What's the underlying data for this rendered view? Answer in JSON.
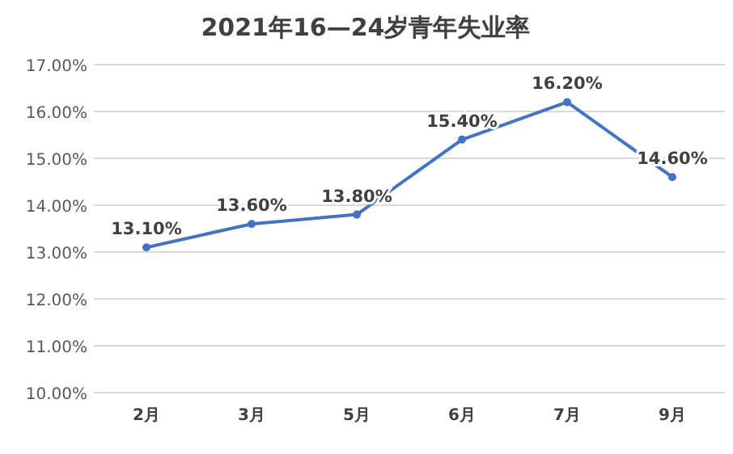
{
  "chart_data": {
    "type": "line",
    "title": "2021年16—24岁青年失业率",
    "categories": [
      "2月",
      "3月",
      "5月",
      "6月",
      "7月",
      "9月"
    ],
    "series": [
      {
        "color": "#4472c4",
        "values": [
          13.1,
          13.6,
          13.8,
          15.4,
          16.2,
          14.6
        ],
        "value_labels": [
          "13.10%",
          "13.60%",
          "13.80%",
          "15.40%",
          "16.20%",
          "14.60%"
        ]
      }
    ],
    "ylim": [
      10,
      17
    ],
    "yticks": [
      {
        "value": 10,
        "label": "10.00%"
      },
      {
        "value": 11,
        "label": "11.00%"
      },
      {
        "value": 12,
        "label": "12.00%"
      },
      {
        "value": 13,
        "label": "13.00%"
      },
      {
        "value": 14,
        "label": "14.00%"
      },
      {
        "value": 15,
        "label": "15.00%"
      },
      {
        "value": 16,
        "label": "16.00%"
      },
      {
        "value": 17,
        "label": "17.00%"
      }
    ],
    "grid": "y",
    "marker": "circle",
    "line_style": "solid"
  }
}
